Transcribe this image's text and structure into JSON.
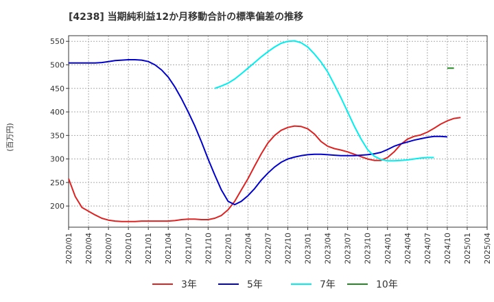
{
  "chart_data": {
    "type": "line",
    "title": "[4238]  当期純利益12か月移動合計の標準偏差の推移",
    "ylabel": "(百万円)",
    "xlabel": "",
    "ylim": [
      155,
      562
    ],
    "yticks": [
      200,
      250,
      300,
      350,
      400,
      450,
      500,
      550
    ],
    "ytick_labels": [
      "200",
      "250",
      "300",
      "350",
      "400",
      "450",
      "500",
      "550"
    ],
    "xlim": [
      "2020-01",
      "2025-04"
    ],
    "xtick_labels": [
      "2020/01",
      "2020/04",
      "2020/07",
      "2020/10",
      "2021/01",
      "2021/04",
      "2021/07",
      "2021/10",
      "2022/01",
      "2022/04",
      "2022/07",
      "2022/10",
      "2023/01",
      "2023/04",
      "2023/07",
      "2023/10",
      "2024/01",
      "2024/04",
      "2024/07",
      "2024/10",
      "2025/01",
      "2025/04"
    ],
    "grid": true,
    "legend_position": "bottom",
    "series": [
      {
        "name": "3年",
        "color": "#dd2222",
        "start": "2020-01",
        "values": [
          258,
          220,
          197,
          189,
          181,
          174,
          170,
          168,
          167,
          167,
          167,
          168,
          168,
          168,
          168,
          168,
          169,
          171,
          172,
          172,
          171,
          171,
          174,
          180,
          192,
          210,
          234,
          258,
          285,
          311,
          334,
          350,
          361,
          367,
          370,
          369,
          364,
          353,
          337,
          327,
          322,
          319,
          315,
          310,
          305,
          300,
          297,
          297,
          303,
          315,
          331,
          342,
          348,
          351,
          357,
          365,
          374,
          381,
          386,
          388
        ]
      },
      {
        "name": "5年",
        "color": "#0000cc",
        "start": "2020-01",
        "values": [
          504,
          504,
          504,
          504,
          504,
          505,
          507,
          509,
          510,
          511,
          511,
          510,
          507,
          500,
          489,
          474,
          453,
          428,
          400,
          370,
          336,
          300,
          266,
          234,
          210,
          203,
          210,
          222,
          237,
          255,
          270,
          283,
          293,
          300,
          304,
          307,
          309,
          310,
          310,
          309,
          308,
          307,
          307,
          307,
          308,
          309,
          311,
          314,
          320,
          327,
          332,
          336,
          340,
          343,
          346,
          348,
          348,
          347
        ]
      },
      {
        "name": "7年",
        "color": "#00eeee",
        "start": "2021-11",
        "values": [
          450,
          455,
          461,
          470,
          481,
          493,
          505,
          517,
          528,
          538,
          546,
          550,
          551,
          547,
          538,
          523,
          506,
          485,
          458,
          430,
          400,
          370,
          343,
          320,
          306,
          299,
          296,
          296,
          297,
          298,
          300,
          302,
          303,
          303
        ]
      },
      {
        "name": "10年",
        "color": "#228822",
        "start": "2024-10",
        "values": [
          493,
          493
        ]
      }
    ]
  }
}
